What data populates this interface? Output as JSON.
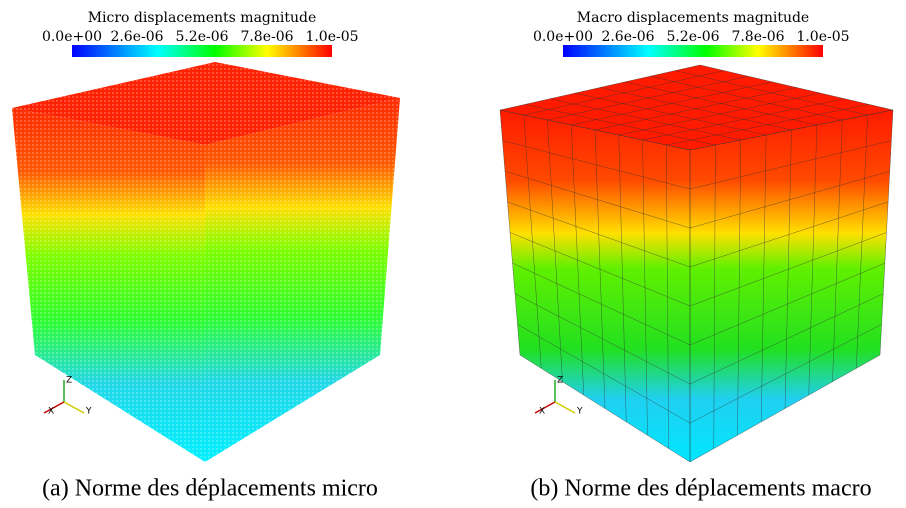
{
  "panels": [
    {
      "colorbar": {
        "title": "Micro displacements magnitude",
        "ticks": [
          "0.0e+00",
          "2.6e-06",
          "5.2e-06",
          "7.8e-06",
          "1.0e-05"
        ]
      },
      "axes": [
        "X",
        "Y",
        "Z"
      ],
      "caption": "(a) Norme des déplacements micro"
    },
    {
      "colorbar": {
        "title": "Macro displacements magnitude",
        "ticks": [
          "0.0e+00",
          "2.6e-06",
          "5.2e-06",
          "7.8e-06",
          "1.0e-05"
        ]
      },
      "axes": [
        "X",
        "Y",
        "Z"
      ],
      "caption": "(b) Norme des déplacements macro"
    }
  ]
}
